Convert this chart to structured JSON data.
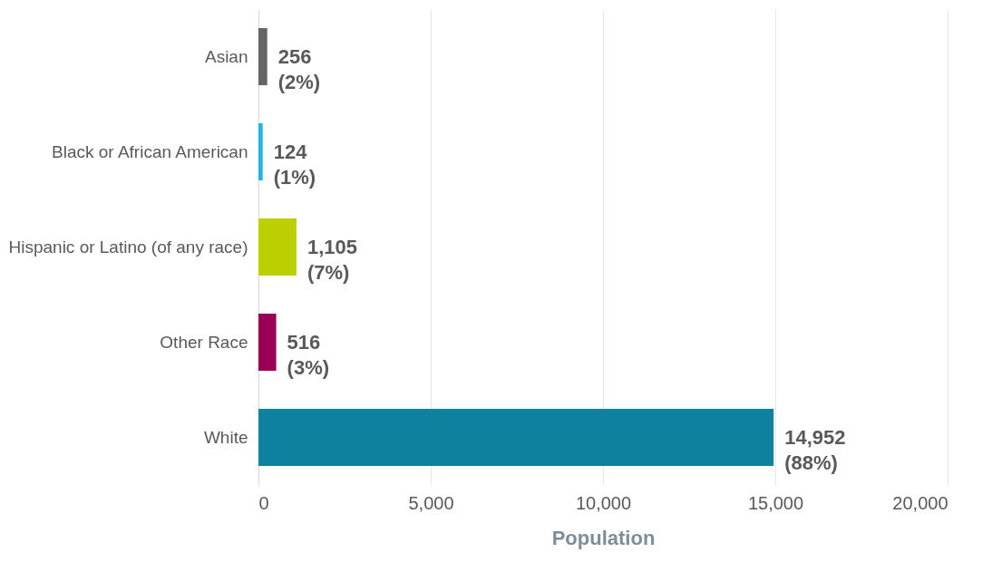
{
  "chart_data": {
    "type": "bar",
    "orientation": "horizontal",
    "xlabel": "Population",
    "categories": [
      "Asian",
      "Black or African American",
      "Hispanic or Latino (of any race)",
      "Other Race",
      "White"
    ],
    "values": [
      256,
      124,
      1105,
      516,
      14952
    ],
    "colors": [
      "#666666",
      "#1fb5e0",
      "#bccf00",
      "#990055",
      "#0e80a0"
    ],
    "value_labels": [
      "256\n(2%)",
      "124\n(1%)",
      "1,105\n(7%)",
      "516\n(3%)",
      "14,952\n(88%)"
    ],
    "xlim": [
      0,
      20000
    ],
    "xticks": [
      {
        "value": 0,
        "label": "0"
      },
      {
        "value": 5000,
        "label": "5,000"
      },
      {
        "value": 10000,
        "label": "10,000"
      },
      {
        "value": 15000,
        "label": "15,000"
      },
      {
        "value": 20000,
        "label": "20,000"
      }
    ],
    "grid": "x",
    "legend": false
  }
}
